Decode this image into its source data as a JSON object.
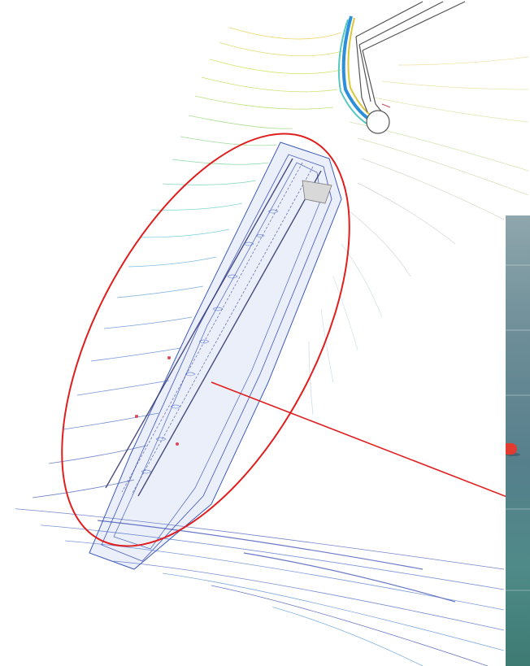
{
  "scene": {
    "description_free": true,
    "annotation_color": "#e01e1e",
    "contour_palette": [
      "#2b3fb0",
      "#3f62c8",
      "#4fa3d9",
      "#58c9c0",
      "#8fd36a",
      "#c8da3c",
      "#e8c93a",
      "#c0c0c0"
    ],
    "photo_buoy_color": "#e23b2f"
  },
  "icons": {
    "highlight": "ellipse-highlight",
    "leader": "leader-line"
  }
}
